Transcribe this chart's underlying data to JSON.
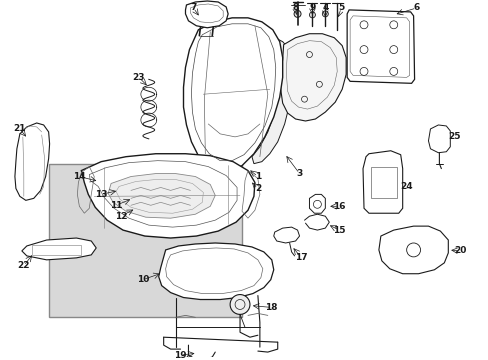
{
  "bg_color": "#ffffff",
  "diagram_bg": "#d8d8d8",
  "line_color": "#1a1a1a",
  "figsize": [
    4.89,
    3.6
  ],
  "dpi": 100
}
